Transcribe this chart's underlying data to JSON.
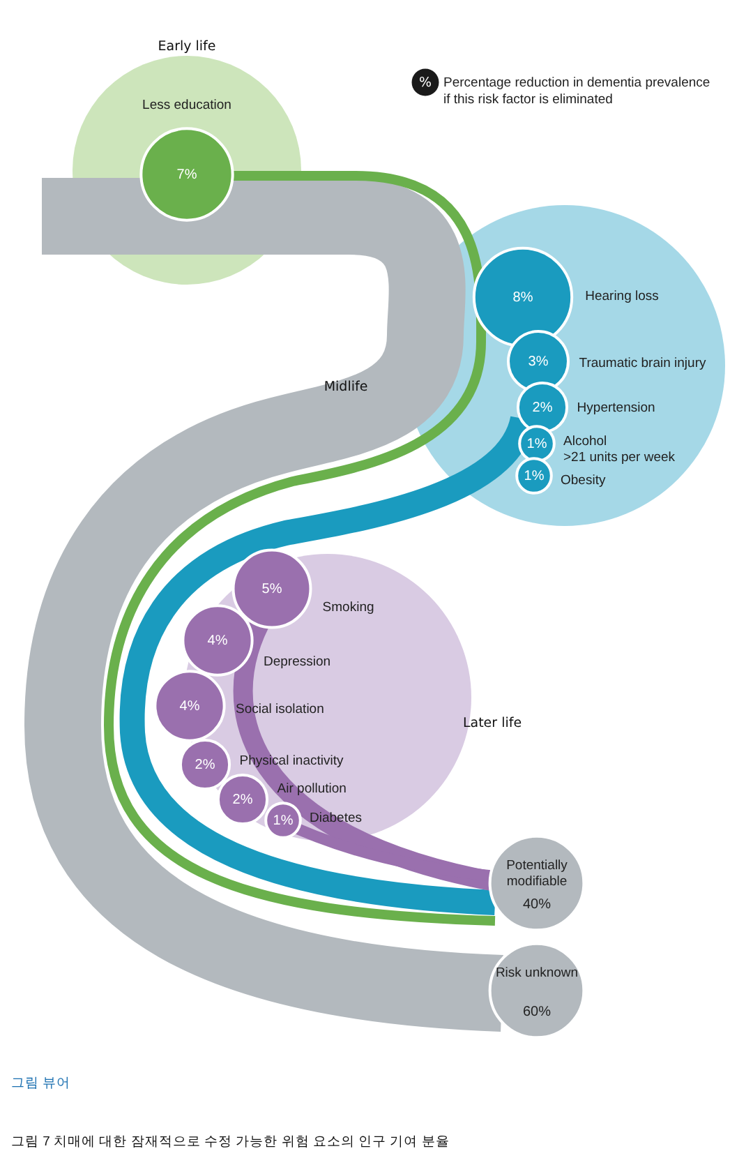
{
  "chart_data": {
    "type": "other",
    "title": "그림 7  치매에 대한 잠재적으로 수정 가능한 위험 요소의 인구 기여 분율",
    "legend_title": "Percentage reduction in dementia prevalence\nif this risk factor is eliminated",
    "categories": [
      "Less education",
      "Hearing loss",
      "Traumatic brain injury",
      "Hypertension",
      "Alcohol\n>21 units per week",
      "Obesity",
      "Smoking",
      "Depression",
      "Social isolation",
      "Physical inactivity",
      "Air pollution",
      "Diabetes",
      "Potentially\nmodifiable",
      "Risk unknown"
    ],
    "values": [
      7,
      8,
      3,
      2,
      1,
      1,
      5,
      4,
      4,
      2,
      2,
      1,
      40,
      60
    ],
    "value_labels": [
      "7%",
      "8%",
      "3%",
      "2%",
      "1%",
      "1%",
      "5%",
      "4%",
      "4%",
      "2%",
      "2%",
      "1%",
      "40%",
      "60%"
    ],
    "colors": [
      "#6ab04c",
      "#1a9bbf",
      "#1a9bbf",
      "#1a9bbf",
      "#1a9bbf",
      "#1a9bbf",
      "#9a70ae",
      "#9a70ae",
      "#9a70ae",
      "#9a70ae",
      "#9a70ae",
      "#9a70ae",
      "#b3b9be",
      "#b3b9be"
    ],
    "annotations": [
      "Early life",
      "Midlife",
      "Later life",
      "%",
      "그림 뷰어"
    ]
  }
}
